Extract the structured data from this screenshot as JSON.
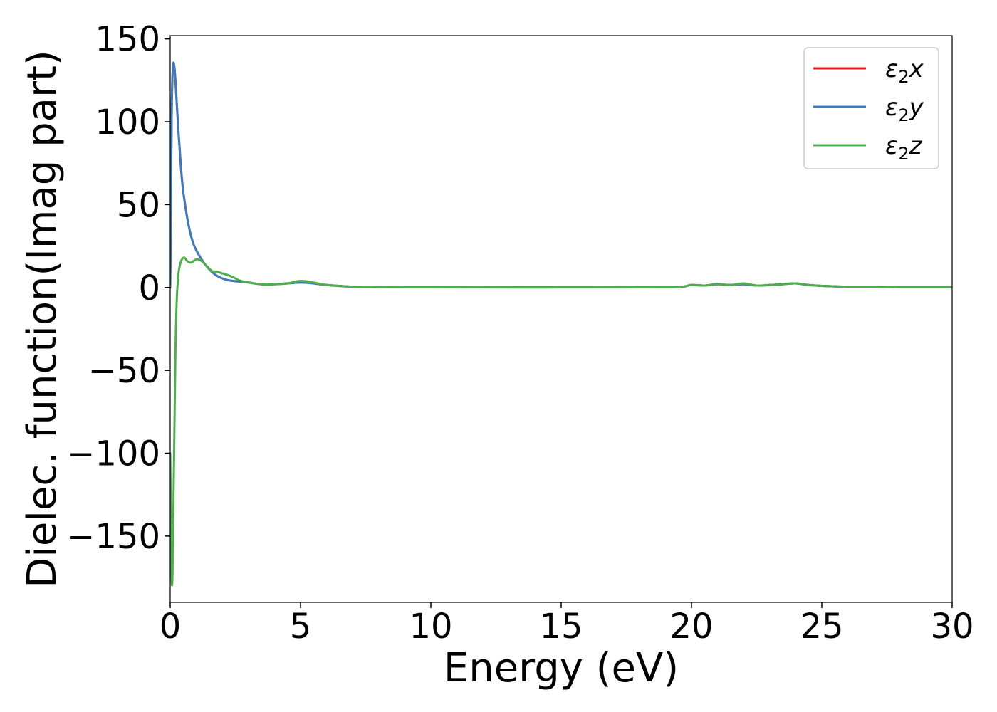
{
  "chart_data": {
    "type": "line",
    "title": "",
    "xlabel": "Energy (eV)",
    "ylabel": "Dielec. function(Imag part)",
    "xlim": [
      0,
      30
    ],
    "ylim": [
      -190,
      152
    ],
    "xticks": [
      0,
      5,
      10,
      15,
      20,
      25,
      30
    ],
    "xtick_labels": [
      "0",
      "5",
      "10",
      "15",
      "20",
      "25",
      "30"
    ],
    "yticks": [
      150,
      100,
      50,
      0,
      -50,
      -100,
      -150
    ],
    "ytick_labels": [
      "150",
      "100",
      "50",
      "0",
      "−50",
      "−100",
      "−150"
    ],
    "grid": false,
    "legend_position": "top-right",
    "series": [
      {
        "name": "ε₂x",
        "legend_base": "ε",
        "legend_sub": "2",
        "legend_var": "x",
        "color": "#e41a1c",
        "x": [
          0,
          0.03,
          0.06,
          0.1,
          0.14,
          0.2,
          0.3,
          0.4,
          0.5,
          0.7,
          0.9,
          1.2,
          1.5,
          1.8,
          2.2,
          2.7,
          3.0,
          3.5,
          4.0,
          4.5,
          5.0,
          5.5,
          6.0,
          7.0,
          8.0,
          10.0,
          12.0,
          15.0,
          18.0,
          19.5,
          20.0,
          20.5,
          21.0,
          21.5,
          22.0,
          22.5,
          23.0,
          23.5,
          24.0,
          24.5,
          25.0,
          26.0,
          27.0,
          28.0,
          29.0,
          30.0
        ],
        "y": [
          0,
          60,
          110,
          132,
          135,
          125,
          98,
          75,
          58,
          38,
          26,
          17,
          11,
          7,
          4.5,
          3.5,
          3,
          2,
          2,
          2.5,
          3,
          2.5,
          1.5,
          0.5,
          0.3,
          0.2,
          0.1,
          0.1,
          0.2,
          0.3,
          1.5,
          1.2,
          2,
          1.5,
          2,
          1.2,
          1.5,
          2,
          2.5,
          1.5,
          1,
          0.5,
          0.5,
          0.3,
          0.3,
          0.3
        ]
      },
      {
        "name": "ε₂y",
        "legend_base": "ε",
        "legend_sub": "2",
        "legend_var": "y",
        "color": "#3a7dbe",
        "x": [
          0,
          0.03,
          0.06,
          0.1,
          0.14,
          0.2,
          0.3,
          0.4,
          0.5,
          0.7,
          0.9,
          1.2,
          1.5,
          1.8,
          2.2,
          2.7,
          3.0,
          3.5,
          4.0,
          4.5,
          5.0,
          5.5,
          6.0,
          7.0,
          8.0,
          10.0,
          12.0,
          15.0,
          18.0,
          19.5,
          20.0,
          20.5,
          21.0,
          21.5,
          22.0,
          22.5,
          23.0,
          23.5,
          24.0,
          24.5,
          25.0,
          26.0,
          27.0,
          28.0,
          29.0,
          30.0
        ],
        "y": [
          0,
          60,
          110,
          132,
          135,
          125,
          98,
          75,
          58,
          38,
          26,
          17,
          11,
          7,
          4.5,
          3.5,
          3,
          2,
          2,
          2.5,
          3,
          2.5,
          1.5,
          0.5,
          0.3,
          0.2,
          0.1,
          0.1,
          0.2,
          0.3,
          1.5,
          1.2,
          2,
          1.5,
          2,
          1.2,
          1.5,
          2,
          2.5,
          1.5,
          1,
          0.5,
          0.5,
          0.3,
          0.3,
          0.3
        ]
      },
      {
        "name": "ε₂z",
        "legend_base": "ε",
        "legend_sub": "2",
        "legend_var": "z",
        "color": "#4daf4a",
        "x": [
          0,
          0.05,
          0.08,
          0.1,
          0.15,
          0.2,
          0.25,
          0.3,
          0.35,
          0.45,
          0.55,
          0.65,
          0.8,
          1.0,
          1.2,
          1.4,
          1.6,
          1.8,
          2.0,
          2.3,
          2.7,
          3.0,
          3.5,
          4.0,
          4.5,
          5.0,
          5.5,
          6.0,
          7.0,
          8.0,
          10.0,
          12.0,
          15.0,
          18.0,
          19.5,
          20.0,
          20.5,
          21.0,
          21.5,
          22.0,
          22.5,
          23.0,
          23.5,
          24.0,
          24.5,
          25.0,
          26.0,
          27.0,
          28.0,
          29.0,
          30.0
        ],
        "y": [
          -100,
          -170,
          -178,
          -160,
          -100,
          -40,
          -8,
          5,
          12,
          17,
          18,
          16,
          15,
          17,
          16,
          13,
          10,
          9.5,
          8.5,
          7,
          4,
          3,
          2,
          2,
          2.5,
          4,
          3,
          1.5,
          0.5,
          0.3,
          0.2,
          0.1,
          0.1,
          0.2,
          0.3,
          1.5,
          1.2,
          2,
          1.5,
          2.5,
          1.2,
          1.5,
          2,
          2.5,
          1.5,
          1,
          0.5,
          0.5,
          0.3,
          0.3,
          0.3
        ]
      }
    ]
  }
}
